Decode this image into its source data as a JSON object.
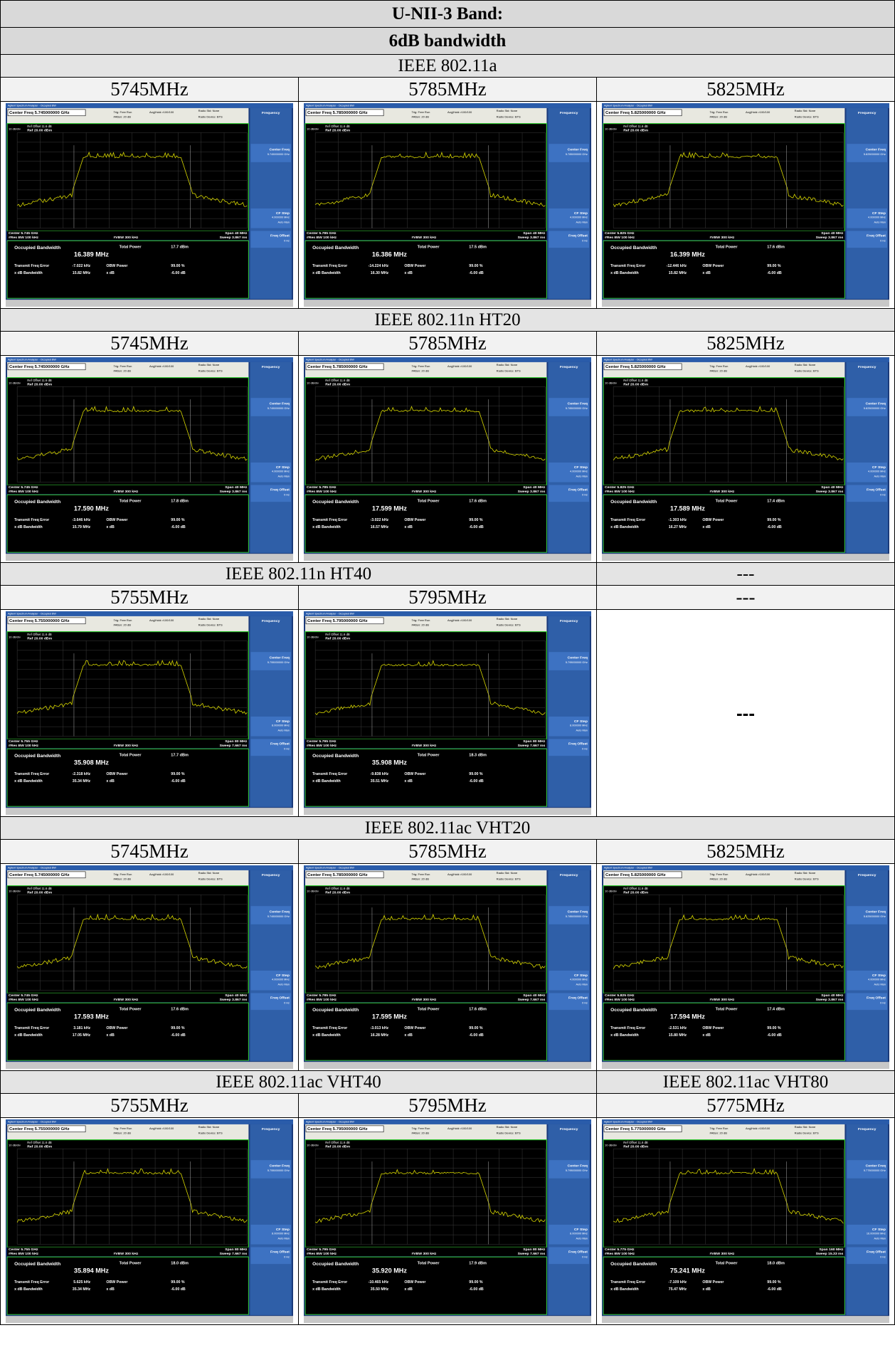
{
  "header": {
    "band": "U-NII-3 Band:",
    "title": "6dB bandwidth"
  },
  "analyzer_labels": {
    "app_title": "Agilent Spectrum Analyzer - Occupied BW",
    "ref_offset": "Ref Offset 11.6 dB",
    "ref": "Ref 20.00 dBm",
    "scale": "10 dB/div",
    "res_bw": "#Res BW 100 kHz",
    "vbw": "#VBW 300 kHz",
    "occupied_bw": "Occupied Bandwidth",
    "total_power": "Total Power",
    "freq_error": "Transmit Freq Error",
    "obw_power": "OBW Power",
    "obw_power_value": "99.00 %",
    "xdb_bw": "x dB Bandwidth",
    "xdb": "x dB",
    "xdb_value": "-6.00 dB",
    "menu": "Frequency",
    "center_freq": "Center Freq",
    "cf_step": "CF Step",
    "auto_man": "Auto Man",
    "freq_offset": "Freq Offset",
    "freq_offset_value": "0 Hz",
    "trig": "Trig: Free Run",
    "avg": "Avg|Hold:>100/100",
    "radio_std": "Radio Std: None",
    "radio_device": "Radio Device: BTS",
    "atten": "#Atten: 20 dB"
  },
  "sections": [
    {
      "headers": [
        "IEEE 802.11a"
      ],
      "channels": [
        {
          "frequency": "5745MHz",
          "screenshot": {
            "center_freq": "Center Freq 5.745000000 GHz",
            "center_freq_value": "5.745000000 GHz",
            "center": "Center 5.745 GHz",
            "span": "Span 40 MHz",
            "sweep": "Sweep 3.867 ms",
            "cf_step": "4.000000 MHz",
            "occupied_bw": "16.389 MHz",
            "total_power": "17.7 dBm",
            "freq_error": "-7.022 kHz",
            "xdb_bw": "15.82 MHz"
          }
        },
        {
          "frequency": "5785MHz",
          "screenshot": {
            "center_freq": "Center Freq 5.785000000 GHz",
            "center_freq_value": "5.785000000 GHz",
            "center": "Center 5.785 GHz",
            "span": "Span 40 MHz",
            "sweep": "Sweep 3.867 ms",
            "cf_step": "4.000000 MHz",
            "occupied_bw": "16.386 MHz",
            "total_power": "17.5 dBm",
            "freq_error": "-14.224 kHz",
            "xdb_bw": "16.30 MHz"
          }
        },
        {
          "frequency": "5825MHz",
          "screenshot": {
            "center_freq": "Center Freq 5.825000000 GHz",
            "center_freq_value": "5.825000000 GHz",
            "center": "Center 5.825 GHz",
            "span": "Span 40 MHz",
            "sweep": "Sweep 3.867 ms",
            "cf_step": "4.000000 MHz",
            "occupied_bw": "16.399 MHz",
            "total_power": "17.6 dBm",
            "freq_error": "-12.446 kHz",
            "xdb_bw": "15.82 MHz"
          }
        }
      ]
    },
    {
      "headers": [
        "IEEE 802.11n HT20"
      ],
      "channels": [
        {
          "frequency": "5745MHz",
          "screenshot": {
            "center_freq": "Center Freq 5.745000000 GHz",
            "center_freq_value": "5.745000000 GHz",
            "center": "Center 5.745 GHz",
            "span": "Span 40 MHz",
            "sweep": "Sweep 3.867 ms",
            "cf_step": "4.000000 MHz",
            "occupied_bw": "17.590 MHz",
            "total_power": "17.8 dBm",
            "freq_error": "-3.646 kHz",
            "xdb_bw": "15.79 MHz"
          }
        },
        {
          "frequency": "5785MHz",
          "screenshot": {
            "center_freq": "Center Freq 5.785000000 GHz",
            "center_freq_value": "5.785000000 GHz",
            "center": "Center 5.785 GHz",
            "span": "Span 40 MHz",
            "sweep": "Sweep 3.867 ms",
            "cf_step": "4.000000 MHz",
            "occupied_bw": "17.599 MHz",
            "total_power": "17.6 dBm",
            "freq_error": "-3.022 kHz",
            "xdb_bw": "16.57 MHz"
          }
        },
        {
          "frequency": "5825MHz",
          "screenshot": {
            "center_freq": "Center Freq 5.825000000 GHz",
            "center_freq_value": "5.825000000 GHz",
            "center": "Center 5.825 GHz",
            "span": "Span 40 MHz",
            "sweep": "Sweep 3.867 ms",
            "cf_step": "4.000000 MHz",
            "occupied_bw": "17.589 MHz",
            "total_power": "17.4 dBm",
            "freq_error": "-1.303 kHz",
            "xdb_bw": "16.27 MHz"
          }
        }
      ]
    },
    {
      "headers": [
        "IEEE 802.11n HT40",
        "---"
      ],
      "channels": [
        {
          "frequency": "5755MHz",
          "screenshot": {
            "center_freq": "Center Freq 5.755000000 GHz",
            "center_freq_value": "5.755000000 GHz",
            "center": "Center 5.755 GHz",
            "span": "Span 80 MHz",
            "sweep": "Sweep 7.667 ms",
            "cf_step": "8.000000 MHz",
            "occupied_bw": "35.908 MHz",
            "total_power": "17.7 dBm",
            "freq_error": "-2.318 kHz",
            "xdb_bw": "35.34 MHz"
          }
        },
        {
          "frequency": "5795MHz",
          "screenshot": {
            "center_freq": "Center Freq 5.795000000 GHz",
            "center_freq_value": "5.795000000 GHz",
            "center": "Center 5.795 GHz",
            "span": "Span 80 MHz",
            "sweep": "Sweep 7.667 ms",
            "cf_step": "8.000000 MHz",
            "occupied_bw": "35.908 MHz",
            "total_power": "18.3 dBm",
            "freq_error": "-9.838 kHz",
            "xdb_bw": "35.51 MHz"
          }
        },
        {
          "frequency": "---",
          "placeholder": "---"
        }
      ]
    },
    {
      "headers": [
        "IEEE 802.11ac VHT20"
      ],
      "channels": [
        {
          "frequency": "5745MHz",
          "screenshot": {
            "center_freq": "Center Freq 5.745000000 GHz",
            "center_freq_value": "5.745000000 GHz",
            "center": "Center 5.745 GHz",
            "span": "Span 40 MHz",
            "sweep": "Sweep 3.867 ms",
            "cf_step": "4.000000 MHz",
            "occupied_bw": "17.593 MHz",
            "total_power": "17.6 dBm",
            "freq_error": "3.181 kHz",
            "xdb_bw": "17.05 MHz"
          }
        },
        {
          "frequency": "5785MHz",
          "screenshot": {
            "center_freq": "Center Freq 5.785000000 GHz",
            "center_freq_value": "5.785000000 GHz",
            "center": "Center 5.785 GHz",
            "span": "Span 40 MHz",
            "sweep": "Sweep 7.667 ms",
            "cf_step": "4.000000 MHz",
            "occupied_bw": "17.595 MHz",
            "total_power": "17.6 dBm",
            "freq_error": "-3.013 kHz",
            "xdb_bw": "16.28 MHz"
          }
        },
        {
          "frequency": "5825MHz",
          "screenshot": {
            "center_freq": "Center Freq 5.825000000 GHz",
            "center_freq_value": "5.825000000 GHz",
            "center": "Center 5.825 GHz",
            "span": "Span 40 MHz",
            "sweep": "Sweep 3.867 ms",
            "cf_step": "4.000000 MHz",
            "occupied_bw": "17.594 MHz",
            "total_power": "17.4 dBm",
            "freq_error": "-2.531 kHz",
            "xdb_bw": "15.80 MHz"
          }
        }
      ]
    },
    {
      "headers": [
        "IEEE 802.11ac VHT40",
        "IEEE 802.11ac VHT80"
      ],
      "channels": [
        {
          "frequency": "5755MHz",
          "screenshot": {
            "center_freq": "Center Freq 5.755000000 GHz",
            "center_freq_value": "5.755000000 GHz",
            "center": "Center 5.755 GHz",
            "span": "Span 80 MHz",
            "sweep": "Sweep 7.667 ms",
            "cf_step": "8.000000 MHz",
            "occupied_bw": "35.894 MHz",
            "total_power": "18.0 dBm",
            "freq_error": "5.625 kHz",
            "xdb_bw": "35.34 MHz"
          }
        },
        {
          "frequency": "5795MHz",
          "screenshot": {
            "center_freq": "Center Freq 5.795000000 GHz",
            "center_freq_value": "5.795000000 GHz",
            "center": "Center 5.795 GHz",
            "span": "Span 80 MHz",
            "sweep": "Sweep 7.667 ms",
            "cf_step": "8.000000 MHz",
            "occupied_bw": "35.920 MHz",
            "total_power": "17.9 dBm",
            "freq_error": "-10.465 kHz",
            "xdb_bw": "35.50 MHz"
          }
        },
        {
          "frequency": "5775MHz",
          "screenshot": {
            "center_freq": "Center Freq 5.775000000 GHz",
            "center_freq_value": "5.775000000 GHz",
            "center": "Center 5.775 GHz",
            "span": "Span 160 MHz",
            "sweep": "Sweep 15.33 ms",
            "cf_step": "16.000000 MHz",
            "occupied_bw": "75.241 MHz",
            "total_power": "18.0 dBm",
            "freq_error": "-7.109 kHz",
            "xdb_bw": "75.47 MHz"
          }
        }
      ]
    }
  ]
}
